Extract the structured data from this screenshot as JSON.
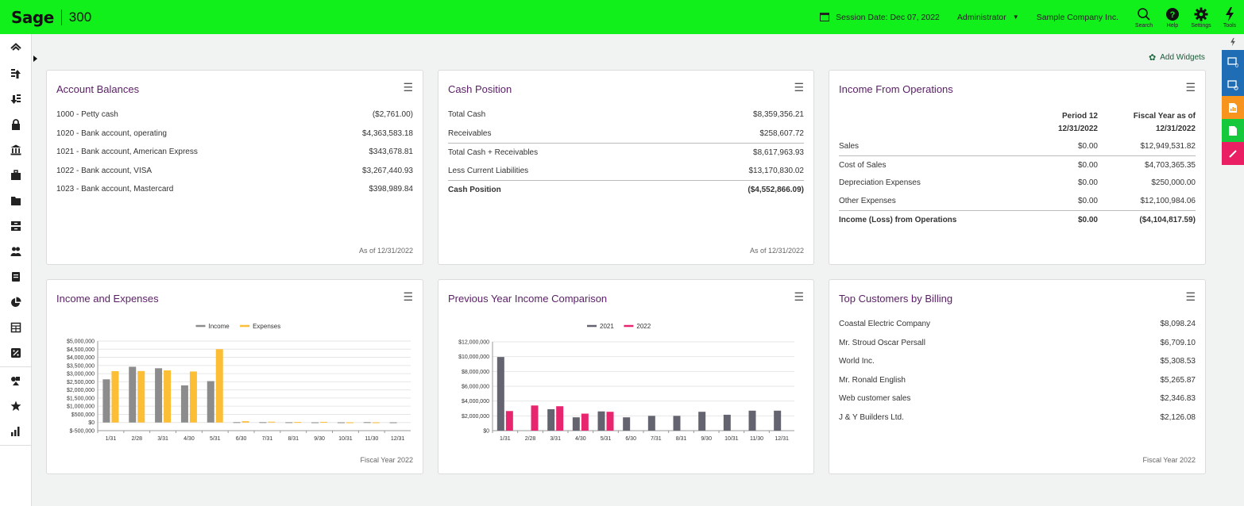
{
  "app": {
    "logo": "Sage",
    "product": "300",
    "session_label": "Session Date:",
    "session_date": "Dec 07, 2022",
    "user": "Administrator",
    "company": "Sample Company Inc.",
    "tools": [
      {
        "name": "search",
        "label": "Search"
      },
      {
        "name": "help",
        "label": "Help"
      },
      {
        "name": "settings",
        "label": "Settings"
      },
      {
        "name": "tools",
        "label": "Tools"
      }
    ],
    "brand_color": "#12f01b"
  },
  "sidebar": {
    "items": [
      {
        "icon": "home-icon"
      },
      {
        "icon": "payables-icon"
      },
      {
        "icon": "receivables-icon"
      },
      {
        "icon": "lock-icon"
      },
      {
        "icon": "bank-icon"
      },
      {
        "icon": "briefcase-icon"
      },
      {
        "icon": "folders-icon"
      },
      {
        "icon": "inventory-icon"
      },
      {
        "icon": "people-icon"
      },
      {
        "icon": "document-icon"
      },
      {
        "icon": "pie-icon"
      },
      {
        "icon": "table-icon"
      },
      {
        "icon": "percent-icon"
      },
      {
        "icon": "shapes-icon"
      },
      {
        "icon": "star-icon"
      },
      {
        "icon": "reports-icon"
      }
    ]
  },
  "rightrail": {
    "badge": "0",
    "colors": [
      "#1e6db5",
      "#1e6db5",
      "#f7941d",
      "#16c93c",
      "#e91e63"
    ]
  },
  "add_widgets": "Add Widgets",
  "account_balances": {
    "title": "Account Balances",
    "rows": [
      {
        "label": "1000 - Petty cash",
        "value": "($2,761.00)"
      },
      {
        "label": "1020 - Bank account, operating",
        "value": "$4,363,583.18"
      },
      {
        "label": "1021 - Bank account, American Express",
        "value": "$343,678.81"
      },
      {
        "label": "1022 - Bank account, VISA",
        "value": "$3,267,440.93"
      },
      {
        "label": "1023 - Bank account, Mastercard",
        "value": "$398,989.84"
      }
    ],
    "footer": "As of 12/31/2022"
  },
  "cash_position": {
    "title": "Cash Position",
    "rows": [
      {
        "label": "Total Cash",
        "value": "$8,359,356.21"
      },
      {
        "label": "Receivables",
        "value": "$258,607.72"
      },
      {
        "label": "Total Cash + Receivables",
        "value": "$8,617,963.93"
      },
      {
        "label": "Less Current Liabilities",
        "value": "$13,170,830.02"
      },
      {
        "label": "Cash Position",
        "value": "($4,552,866.09)"
      }
    ],
    "footer": "As of 12/31/2022"
  },
  "income_ops": {
    "title": "Income From Operations",
    "head_period": "Period  12",
    "head_period_date": "12/31/2022",
    "head_fy": "Fiscal Year as of",
    "head_fy_date": "12/31/2022",
    "rows": [
      {
        "label": "Sales",
        "period": "$0.00",
        "fy": "$12,949,531.82"
      },
      {
        "label": "Cost of Sales",
        "period": "$0.00",
        "fy": "$4,703,365.35"
      },
      {
        "label": "Depreciation Expenses",
        "period": "$0.00",
        "fy": "$250,000.00"
      },
      {
        "label": "Other Expenses",
        "period": "$0.00",
        "fy": "$12,100,984.06"
      },
      {
        "label": "Income (Loss) from Operations",
        "period": "$0.00",
        "fy": "($4,104,817.59)"
      }
    ]
  },
  "income_expenses": {
    "title": "Income and Expenses",
    "footer": "Fiscal Year 2022"
  },
  "prev_year": {
    "title": "Previous Year Income Comparison"
  },
  "top_customers": {
    "title": "Top Customers by Billing",
    "rows": [
      {
        "label": "Coastal Electric Company",
        "value": "$8,098.24"
      },
      {
        "label": "Mr. Stroud Oscar Persall",
        "value": "$6,709.10"
      },
      {
        "label": "World Inc.",
        "value": "$5,308.53"
      },
      {
        "label": "Mr. Ronald English",
        "value": "$5,265.87"
      },
      {
        "label": "Web customer sales",
        "value": "$2,346.83"
      },
      {
        "label": "J & Y Builders Ltd.",
        "value": "$2,126.08"
      }
    ],
    "footer": "Fiscal Year 2022"
  },
  "chart_data": [
    {
      "type": "bar",
      "categories": [
        "1/31",
        "2/28",
        "3/31",
        "4/30",
        "5/31",
        "6/30",
        "7/31",
        "8/31",
        "9/30",
        "10/31",
        "11/30",
        "12/31"
      ],
      "series": [
        {
          "name": "Income",
          "color": "#8c8c8c",
          "values": [
            2650000,
            3420000,
            3330000,
            2280000,
            2540000,
            20000,
            20000,
            15000,
            10000,
            10000,
            20000,
            10000
          ]
        },
        {
          "name": "Expenses",
          "color": "#fbbe35",
          "values": [
            3150000,
            3160000,
            3200000,
            3130000,
            4500000,
            80000,
            50000,
            30000,
            40000,
            10000,
            10000,
            0
          ]
        }
      ],
      "ylim": [
        -500000,
        5000000
      ],
      "yticks": [
        -500000,
        0,
        500000,
        1000000,
        1500000,
        2000000,
        2500000,
        3000000,
        3500000,
        4000000,
        4500000,
        5000000
      ],
      "ytick_labels": [
        "$-500,000",
        "$0",
        "$500,000",
        "$1,000,000",
        "$1,500,000",
        "$2,000,000",
        "$2,500,000",
        "$3,000,000",
        "$3,500,000",
        "$4,000,000",
        "$4,500,000",
        "$5,000,000"
      ],
      "legend": "top-center"
    },
    {
      "type": "bar",
      "categories": [
        "1/31",
        "2/28",
        "3/31",
        "4/30",
        "5/31",
        "6/30",
        "7/31",
        "8/31",
        "9/30",
        "10/31",
        "11/30",
        "12/31"
      ],
      "series": [
        {
          "name": "2021",
          "color": "#646470",
          "values": [
            9950000,
            0,
            2900000,
            1800000,
            2600000,
            1800000,
            2000000,
            2000000,
            2550000,
            2150000,
            2700000,
            2700000
          ]
        },
        {
          "name": "2022",
          "color": "#e8266f",
          "values": [
            2650000,
            3400000,
            3300000,
            2300000,
            2550000,
            0,
            0,
            0,
            0,
            0,
            0,
            0
          ]
        }
      ],
      "ylim": [
        0,
        12000000
      ],
      "yticks": [
        0,
        2000000,
        4000000,
        6000000,
        8000000,
        10000000,
        12000000
      ],
      "ytick_labels": [
        "$0",
        "$2,000,000",
        "$4,000,000",
        "$6,000,000",
        "$8,000,000",
        "$10,000,000",
        "$12,000,000"
      ],
      "legend": "top-center"
    }
  ]
}
